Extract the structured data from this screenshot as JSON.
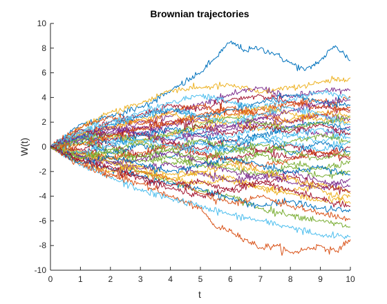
{
  "chart_data": {
    "type": "line",
    "title": "Brownian trajectories",
    "xlabel": "t",
    "ylabel": "W(t)",
    "xlim": [
      0,
      10
    ],
    "ylim": [
      -10,
      10
    ],
    "xticks": [
      "0",
      "1",
      "2",
      "3",
      "4",
      "5",
      "6",
      "7",
      "8",
      "9",
      "10"
    ],
    "yticks": [
      "-10",
      "-8",
      "-6",
      "-4",
      "-2",
      "0",
      "2",
      "4",
      "6",
      "8",
      "10"
    ],
    "grid": false,
    "legend": "none",
    "colors": [
      "#0072BD",
      "#D95319",
      "#EDB120",
      "#7E2F8E",
      "#77AC30",
      "#4DBEEE",
      "#A2142F"
    ],
    "series": [
      {
        "x": [
          0,
          1,
          2,
          3,
          4,
          5,
          5.5,
          6,
          6.5,
          7,
          7.5,
          8,
          8.5,
          9,
          9.5,
          10
        ],
        "values": [
          0,
          1.8,
          2.5,
          3.2,
          4.5,
          6.0,
          7.2,
          8.5,
          7.8,
          8.0,
          7.5,
          6.8,
          6.2,
          7.0,
          8.2,
          7.0
        ]
      },
      {
        "x": [
          0,
          1,
          2,
          3,
          4,
          5,
          5.5,
          6,
          6.5,
          7,
          7.5,
          8,
          8.5,
          9,
          9.5,
          10
        ],
        "values": [
          0,
          -1.0,
          -2.2,
          -3.0,
          -4.0,
          -5.0,
          -6.5,
          -6.8,
          -7.5,
          -8.2,
          -8.0,
          -8.6,
          -8.3,
          -8.0,
          -8.5,
          -7.5
        ]
      },
      {
        "x": [
          0,
          1,
          2,
          3,
          4,
          5,
          6,
          7,
          8,
          9,
          10
        ],
        "values": [
          0,
          1.5,
          2.8,
          3.5,
          4.6,
          4.8,
          5.0,
          4.4,
          4.8,
          5.2,
          5.6
        ]
      },
      {
        "x": [
          0,
          1,
          2,
          3,
          4,
          5,
          6,
          7,
          8,
          9,
          10
        ],
        "values": [
          0,
          0.8,
          1.2,
          2.0,
          2.5,
          3.5,
          4.2,
          4.8,
          4.0,
          4.5,
          4.6
        ]
      },
      {
        "x": [
          0,
          1,
          2,
          3,
          4,
          5,
          6,
          7,
          8,
          9,
          10
        ],
        "values": [
          0,
          -0.5,
          -1.2,
          -2.0,
          -2.8,
          -3.6,
          -4.0,
          -5.0,
          -5.5,
          -6.0,
          -6.5
        ]
      },
      {
        "x": [
          0,
          1,
          2,
          3,
          4,
          5,
          6,
          7,
          8,
          9,
          10
        ],
        "values": [
          0,
          -1.5,
          -2.5,
          -3.5,
          -4.2,
          -4.8,
          -5.5,
          -6.0,
          -6.5,
          -7.2,
          -7.3
        ]
      },
      {
        "x": [
          0,
          1,
          2,
          3,
          4,
          5,
          6,
          7,
          8,
          9,
          10
        ],
        "values": [
          0,
          1.0,
          2.0,
          2.6,
          3.4,
          3.0,
          3.8,
          4.2,
          3.6,
          3.2,
          3.0
        ]
      },
      {
        "x": [
          0,
          1,
          2,
          3,
          4,
          5,
          6,
          7,
          8,
          9,
          10
        ],
        "values": [
          0,
          -0.8,
          -1.8,
          -2.4,
          -3.0,
          -3.4,
          -4.2,
          -4.8,
          -4.4,
          -5.0,
          -5.2
        ]
      },
      {
        "x": [
          0,
          1,
          2,
          3,
          4,
          5,
          6,
          7,
          8,
          9,
          10
        ],
        "values": [
          0,
          1.2,
          1.6,
          2.2,
          1.8,
          2.4,
          3.0,
          2.6,
          3.4,
          3.8,
          2.8
        ]
      },
      {
        "x": [
          0,
          1,
          2,
          3,
          4,
          5,
          6,
          7,
          8,
          9,
          10
        ],
        "values": [
          0,
          -1.0,
          -0.8,
          -1.6,
          -2.2,
          -2.0,
          -2.8,
          -3.2,
          -3.6,
          -3.0,
          -3.8
        ]
      },
      {
        "x": [
          0,
          1,
          2,
          3,
          4,
          5,
          6,
          7,
          8,
          9,
          10
        ],
        "values": [
          0,
          0.6,
          1.4,
          1.0,
          1.8,
          2.2,
          1.6,
          2.4,
          2.0,
          2.6,
          2.2
        ]
      },
      {
        "x": [
          0,
          1,
          2,
          3,
          4,
          5,
          6,
          7,
          8,
          9,
          10
        ],
        "values": [
          0,
          -0.4,
          -1.0,
          -0.6,
          -1.4,
          -1.0,
          -1.8,
          -2.2,
          -1.6,
          -2.4,
          -2.0
        ]
      },
      {
        "x": [
          0,
          1,
          2,
          3,
          4,
          5,
          6,
          7,
          8,
          9,
          10
        ],
        "values": [
          0,
          0.9,
          0.4,
          1.2,
          0.6,
          1.4,
          0.8,
          1.6,
          1.0,
          0.4,
          1.2
        ]
      },
      {
        "x": [
          0,
          1,
          2,
          3,
          4,
          5,
          6,
          7,
          8,
          9,
          10
        ],
        "values": [
          0,
          -0.6,
          0.2,
          -0.8,
          0.4,
          -0.2,
          0.6,
          -0.4,
          0.2,
          -0.8,
          0.0
        ]
      },
      {
        "x": [
          0,
          1,
          2,
          3,
          4,
          5,
          6,
          7,
          8,
          9,
          10
        ],
        "values": [
          0,
          0.3,
          -0.5,
          0.2,
          -0.9,
          0.5,
          -0.3,
          0.9,
          -0.6,
          0.4,
          -0.4
        ]
      },
      {
        "x": [
          0,
          1,
          2,
          3,
          4,
          5,
          6,
          7,
          8,
          9,
          10
        ],
        "values": [
          0,
          1.6,
          2.4,
          1.8,
          2.8,
          3.4,
          2.6,
          3.0,
          3.6,
          3.2,
          4.0
        ]
      },
      {
        "x": [
          0,
          1,
          2,
          3,
          4,
          5,
          6,
          7,
          8,
          9,
          10
        ],
        "values": [
          0,
          -1.2,
          -2.0,
          -1.6,
          -2.6,
          -3.0,
          -2.4,
          -3.4,
          -3.8,
          -4.4,
          -4.0
        ]
      },
      {
        "x": [
          0,
          1,
          2,
          3,
          4,
          5,
          6,
          7,
          8,
          9,
          10
        ],
        "values": [
          0,
          0.5,
          1.0,
          1.6,
          1.2,
          0.8,
          1.4,
          2.0,
          1.6,
          1.0,
          1.6
        ]
      },
      {
        "x": [
          0,
          1,
          2,
          3,
          4,
          5,
          6,
          7,
          8,
          9,
          10
        ],
        "values": [
          0,
          -0.9,
          -0.4,
          -1.2,
          -0.8,
          -1.6,
          -1.2,
          -0.6,
          -1.4,
          -1.8,
          -1.2
        ]
      },
      {
        "x": [
          0,
          1,
          2,
          3,
          4,
          5,
          6,
          7,
          8,
          9,
          10
        ],
        "values": [
          0,
          1.1,
          0.7,
          0.3,
          0.9,
          0.2,
          -0.4,
          0.3,
          0.9,
          1.5,
          0.7
        ]
      },
      {
        "x": [
          0,
          1,
          2,
          3,
          4,
          5,
          6,
          7,
          8,
          9,
          10
        ],
        "values": [
          0,
          -0.2,
          0.6,
          1.0,
          0.3,
          -0.6,
          -1.0,
          -0.3,
          -0.9,
          -0.4,
          -1.0
        ]
      },
      {
        "x": [
          0,
          1,
          2,
          3,
          4,
          5,
          6,
          7,
          8,
          9,
          10
        ],
        "values": [
          0,
          0.7,
          1.8,
          2.4,
          3.0,
          2.4,
          3.0,
          3.6,
          4.2,
          3.6,
          3.4
        ]
      },
      {
        "x": [
          0,
          1,
          2,
          3,
          4,
          5,
          6,
          7,
          8,
          9,
          10
        ],
        "values": [
          0,
          -1.4,
          -2.4,
          -2.0,
          -2.6,
          -3.8,
          -4.6,
          -4.0,
          -4.8,
          -5.4,
          -5.9
        ]
      },
      {
        "x": [
          0,
          1,
          2,
          3,
          4,
          5,
          6,
          7,
          8,
          9,
          10
        ],
        "values": [
          0,
          0.2,
          0.8,
          0.4,
          1.0,
          1.6,
          2.0,
          1.4,
          2.2,
          2.8,
          2.4
        ]
      },
      {
        "x": [
          0,
          1,
          2,
          3,
          4,
          5,
          6,
          7,
          8,
          9,
          10
        ],
        "values": [
          0,
          -0.7,
          -1.4,
          -1.0,
          -0.4,
          -1.2,
          -2.0,
          -2.6,
          -2.0,
          -2.8,
          -3.2
        ]
      },
      {
        "x": [
          0,
          1,
          2,
          3,
          4,
          5,
          6,
          7,
          8,
          9,
          10
        ],
        "values": [
          0,
          0.4,
          -0.2,
          -0.8,
          -0.2,
          0.6,
          0.0,
          -0.6,
          0.4,
          1.0,
          0.4
        ]
      },
      {
        "x": [
          0,
          1,
          2,
          3,
          4,
          5,
          6,
          7,
          8,
          9,
          10
        ],
        "values": [
          0,
          1.3,
          2.0,
          2.8,
          3.6,
          4.2,
          3.6,
          3.2,
          3.8,
          4.4,
          4.0
        ]
      },
      {
        "x": [
          0,
          1,
          2,
          3,
          4,
          5,
          6,
          7,
          8,
          9,
          10
        ],
        "values": [
          0,
          -1.1,
          -1.6,
          -2.4,
          -3.2,
          -2.8,
          -3.6,
          -3.0,
          -2.4,
          -3.2,
          -3.6
        ]
      },
      {
        "x": [
          0,
          1,
          2,
          3,
          4,
          5,
          6,
          7,
          8,
          9,
          10
        ],
        "values": [
          0,
          0.8,
          0.3,
          0.9,
          1.5,
          1.0,
          0.4,
          1.0,
          1.6,
          2.0,
          1.4
        ]
      },
      {
        "x": [
          0,
          1,
          2,
          3,
          4,
          5,
          6,
          7,
          8,
          9,
          10
        ],
        "values": [
          0,
          -0.3,
          -0.9,
          -0.5,
          0.1,
          -0.5,
          -1.1,
          -1.6,
          -1.0,
          -0.4,
          -0.8
        ]
      },
      {
        "x": [
          0,
          1,
          2,
          3,
          4,
          5,
          6,
          7,
          8,
          9,
          10
        ],
        "values": [
          0,
          1.0,
          1.5,
          2.2,
          2.7,
          2.0,
          2.5,
          3.2,
          2.7,
          2.2,
          2.0
        ]
      },
      {
        "x": [
          0,
          1,
          2,
          3,
          4,
          5,
          6,
          7,
          8,
          9,
          10
        ],
        "values": [
          0,
          -0.8,
          -1.2,
          -1.8,
          -1.4,
          -2.2,
          -2.8,
          -2.2,
          -2.9,
          -3.4,
          -2.6
        ]
      },
      {
        "x": [
          0,
          1,
          2,
          3,
          4,
          5,
          6,
          7,
          8,
          9,
          10
        ],
        "values": [
          0,
          0.6,
          1.0,
          0.5,
          1.1,
          1.8,
          2.4,
          1.9,
          1.4,
          1.9,
          2.5
        ]
      },
      {
        "x": [
          0,
          1,
          2,
          3,
          4,
          5,
          6,
          7,
          8,
          9,
          10
        ],
        "values": [
          0,
          -0.5,
          0.1,
          0.6,
          0.1,
          -0.4,
          0.2,
          0.8,
          0.3,
          -0.3,
          0.5
        ]
      },
      {
        "x": [
          0,
          1,
          2,
          3,
          4,
          5,
          6,
          7,
          8,
          9,
          10
        ],
        "values": [
          0,
          1.4,
          0.9,
          1.5,
          2.1,
          1.6,
          1.1,
          1.7,
          1.2,
          1.8,
          1.0
        ]
      },
      {
        "x": [
          0,
          1,
          2,
          3,
          4,
          5,
          6,
          7,
          8,
          9,
          10
        ],
        "values": [
          0,
          -1.3,
          -0.8,
          -1.4,
          -2.0,
          -1.5,
          -0.9,
          -1.5,
          -2.1,
          -1.6,
          -2.3
        ]
      },
      {
        "x": [
          0,
          1,
          2,
          3,
          4,
          5,
          6,
          7,
          8,
          9,
          10
        ],
        "values": [
          0,
          0.2,
          0.9,
          1.4,
          1.9,
          2.6,
          3.2,
          2.6,
          2.0,
          2.6,
          3.2
        ]
      },
      {
        "x": [
          0,
          1,
          2,
          3,
          4,
          5,
          6,
          7,
          8,
          9,
          10
        ],
        "values": [
          0,
          -0.6,
          -1.3,
          -2.0,
          -2.6,
          -2.0,
          -1.4,
          -2.0,
          -2.6,
          -3.4,
          -4.6
        ]
      },
      {
        "x": [
          0,
          1,
          2,
          3,
          4,
          5,
          6,
          7,
          8,
          9,
          10
        ],
        "values": [
          0,
          0.9,
          1.6,
          1.1,
          0.5,
          1.1,
          1.7,
          2.3,
          2.9,
          3.5,
          3.8
        ]
      },
      {
        "x": [
          0,
          1,
          2,
          3,
          4,
          5,
          6,
          7,
          8,
          9,
          10
        ],
        "values": [
          0,
          -0.9,
          -0.3,
          0.3,
          -0.3,
          -0.9,
          -0.4,
          0.2,
          -0.4,
          -1.0,
          -0.5
        ]
      },
      {
        "x": [
          0,
          1,
          2,
          3,
          4,
          5,
          6,
          7,
          8,
          9,
          10
        ],
        "values": [
          0,
          1.2,
          1.8,
          2.5,
          3.1,
          2.5,
          1.9,
          2.6,
          3.2,
          2.6,
          1.8
        ]
      },
      {
        "x": [
          0,
          1,
          2,
          3,
          4,
          5,
          6,
          7,
          8,
          9,
          10
        ],
        "values": [
          0,
          -1.1,
          -1.8,
          -2.6,
          -3.4,
          -4.0,
          -3.4,
          -2.8,
          -3.5,
          -4.2,
          -4.8
        ]
      }
    ]
  }
}
